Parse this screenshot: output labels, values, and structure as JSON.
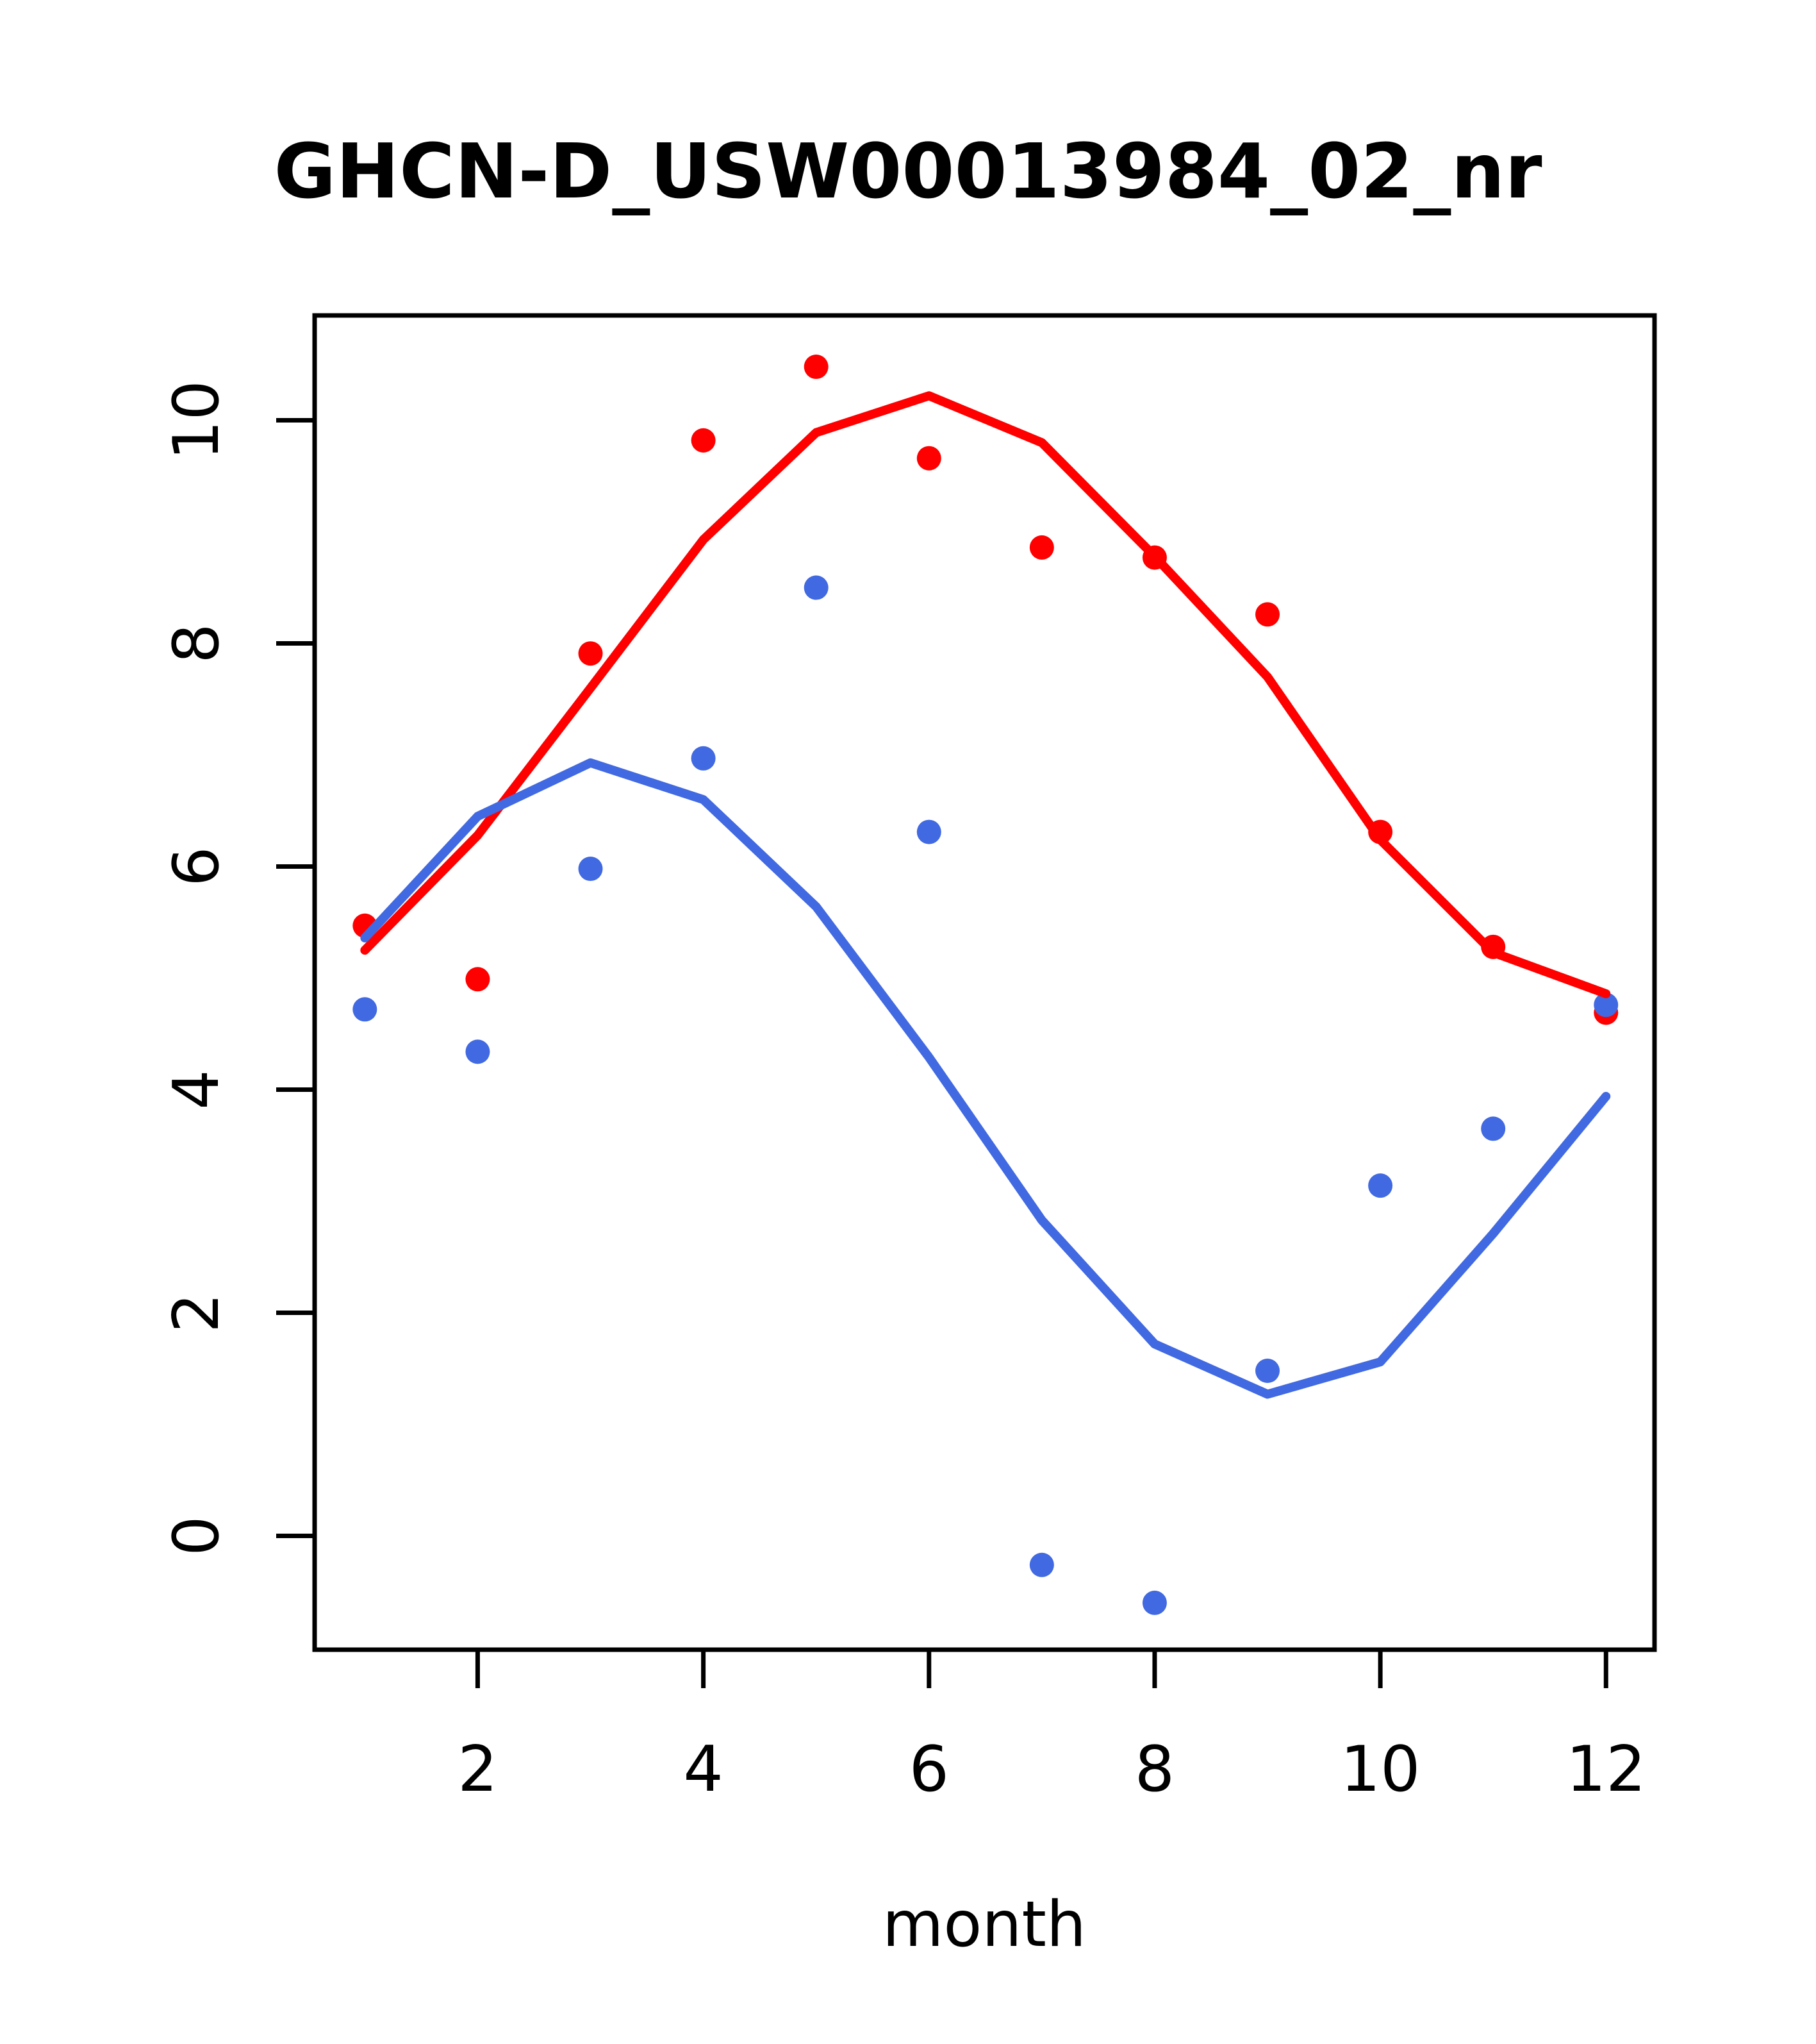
{
  "chart_data": {
    "type": "scatter",
    "title": "GHCN-D_USW00013984_02_nr",
    "xlabel": "month",
    "ylabel": "",
    "x": [
      1,
      2,
      3,
      4,
      5,
      6,
      7,
      8,
      9,
      10,
      11,
      12
    ],
    "series": [
      {
        "name": "red-points",
        "kind": "points",
        "color": "#ff0000",
        "values": [
          5.47,
          4.99,
          7.91,
          9.82,
          10.48,
          9.66,
          8.86,
          8.77,
          8.26,
          6.31,
          5.28,
          4.69
        ]
      },
      {
        "name": "blue-points",
        "kind": "points",
        "color": "#4169e1",
        "values": [
          4.72,
          4.34,
          5.98,
          6.97,
          8.5,
          6.31,
          -0.26,
          -0.6,
          1.48,
          3.14,
          3.65,
          4.76
        ]
      },
      {
        "name": "red-line",
        "kind": "line",
        "color": "#ff0000",
        "values": [
          5.25,
          6.28,
          7.6,
          8.93,
          9.89,
          10.22,
          9.8,
          8.78,
          7.7,
          6.24,
          5.23,
          4.86
        ]
      },
      {
        "name": "blue-line",
        "kind": "line",
        "color": "#4169e1",
        "values": [
          5.36,
          6.45,
          6.93,
          6.6,
          5.64,
          4.29,
          2.83,
          1.72,
          1.27,
          1.56,
          2.71,
          3.94
        ]
      }
    ],
    "xticks": [
      "2",
      "4",
      "6",
      "8",
      "10",
      "12"
    ],
    "xtick_values": [
      2,
      4,
      6,
      8,
      10,
      12
    ],
    "yticks": [
      "0",
      "2",
      "4",
      "6",
      "8",
      "10"
    ],
    "ytick_values": [
      0,
      2,
      4,
      6,
      8,
      10
    ],
    "xlim": [
      0.555,
      12.43
    ],
    "ylim": [
      -1.02,
      10.94
    ],
    "grid": false,
    "legend": null,
    "axis_color": "#000000",
    "background_color": "#ffffff"
  }
}
